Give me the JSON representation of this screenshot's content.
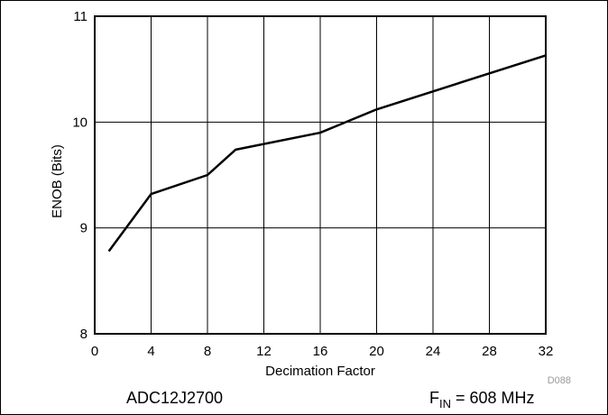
{
  "chart_data": {
    "type": "line",
    "x_values": [
      1,
      4,
      8,
      10,
      16,
      20,
      32
    ],
    "series": [
      {
        "values": [
          8.78,
          9.32,
          9.5,
          9.74,
          9.9,
          10.12,
          10.63
        ]
      }
    ],
    "xlabel": "Decimation Factor",
    "ylabel": "ENOB (Bits)",
    "xlim": [
      0,
      32
    ],
    "ylim": [
      8,
      11
    ],
    "x_ticks": [
      "0",
      "4",
      "8",
      "12",
      "16",
      "20",
      "24",
      "28",
      "32"
    ],
    "y_ticks": [
      "8",
      "9",
      "10",
      "11"
    ],
    "grid": true,
    "line_color": "#000000",
    "figure_code": "D088"
  },
  "footer": {
    "device": "ADC12J2700",
    "fin_main": "F",
    "fin_sub": "IN",
    "fin_rest": " = 608 MHz"
  }
}
